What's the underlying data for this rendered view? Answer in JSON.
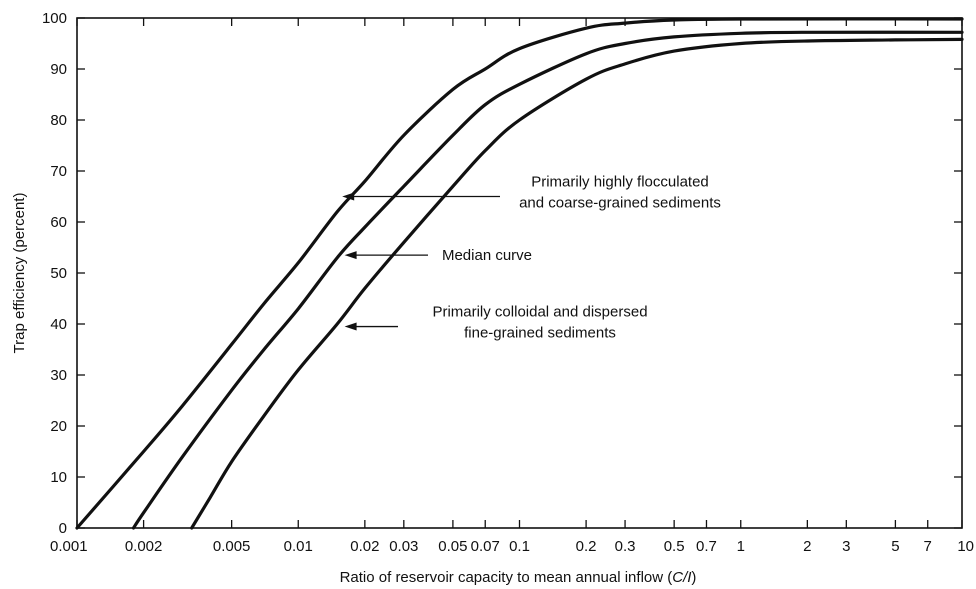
{
  "chart_data": {
    "type": "line",
    "xlabel_prefix": "Ratio of reservoir capacity to mean annual inflow (",
    "xlabel_italic": "C/I",
    "xlabel_suffix": ")",
    "ylabel": "Trap efficiency (percent)",
    "x_scale": "log",
    "xlim": [
      0.001,
      10
    ],
    "ylim": [
      0,
      100
    ],
    "x_ticks": [
      0.001,
      0.002,
      0.005,
      0.01,
      0.02,
      0.03,
      0.05,
      0.07,
      0.1,
      0.2,
      0.3,
      0.5,
      0.7,
      1,
      2,
      3,
      5,
      7,
      10
    ],
    "x_tick_labels": [
      "0.001",
      "0.002",
      "0.005",
      "0.01",
      "0.02",
      "0.03",
      "0.05",
      "0.07",
      "0.1",
      "0.2",
      "0.3",
      "0.5",
      "0.7",
      "1",
      "2",
      "3",
      "5",
      "7",
      "10"
    ],
    "y_ticks": [
      0,
      10,
      20,
      30,
      40,
      50,
      60,
      70,
      80,
      90,
      100
    ],
    "y_tick_labels": [
      "0",
      "10",
      "20",
      "30",
      "40",
      "50",
      "60",
      "70",
      "80",
      "90",
      "100"
    ],
    "series": [
      {
        "x": [
          0.001,
          0.002,
          0.003,
          0.005,
          0.007,
          0.01,
          0.015,
          0.02,
          0.03,
          0.05,
          0.07,
          0.1,
          0.2,
          0.3,
          0.5,
          1,
          10
        ],
        "y": [
          0,
          15,
          24,
          36,
          44,
          52,
          62,
          68,
          77,
          86,
          90,
          94,
          98,
          99,
          99.6,
          99.8,
          99.8
        ]
      },
      {
        "x": [
          0.0018,
          0.002,
          0.003,
          0.005,
          0.007,
          0.01,
          0.015,
          0.02,
          0.03,
          0.05,
          0.07,
          0.1,
          0.2,
          0.3,
          0.5,
          1,
          2,
          10
        ],
        "y": [
          0,
          3,
          14,
          27,
          35,
          43,
          53,
          59,
          67,
          77,
          83,
          87,
          93,
          95,
          96.3,
          97,
          97.2,
          97.2
        ]
      },
      {
        "x": [
          0.0033,
          0.004,
          0.005,
          0.007,
          0.01,
          0.015,
          0.02,
          0.03,
          0.05,
          0.07,
          0.1,
          0.2,
          0.3,
          0.5,
          1,
          2,
          5,
          10
        ],
        "y": [
          0,
          6,
          13,
          22,
          31,
          40,
          47,
          56,
          67,
          74,
          80,
          88,
          91,
          93.5,
          95,
          95.5,
          95.7,
          95.8
        ]
      }
    ],
    "annotations": [
      {
        "lines": [
          "Primarily highly flocculated",
          "and coarse-grained sediments"
        ],
        "arrow_x": 0.0158,
        "arrow_y": 65
      },
      {
        "lines": [
          "Median curve"
        ],
        "arrow_x": 0.0162,
        "arrow_y": 53.5
      },
      {
        "lines": [
          "Primarily colloidal and dispersed",
          "fine-grained sediments"
        ],
        "arrow_x": 0.0162,
        "arrow_y": 39.5
      }
    ]
  }
}
